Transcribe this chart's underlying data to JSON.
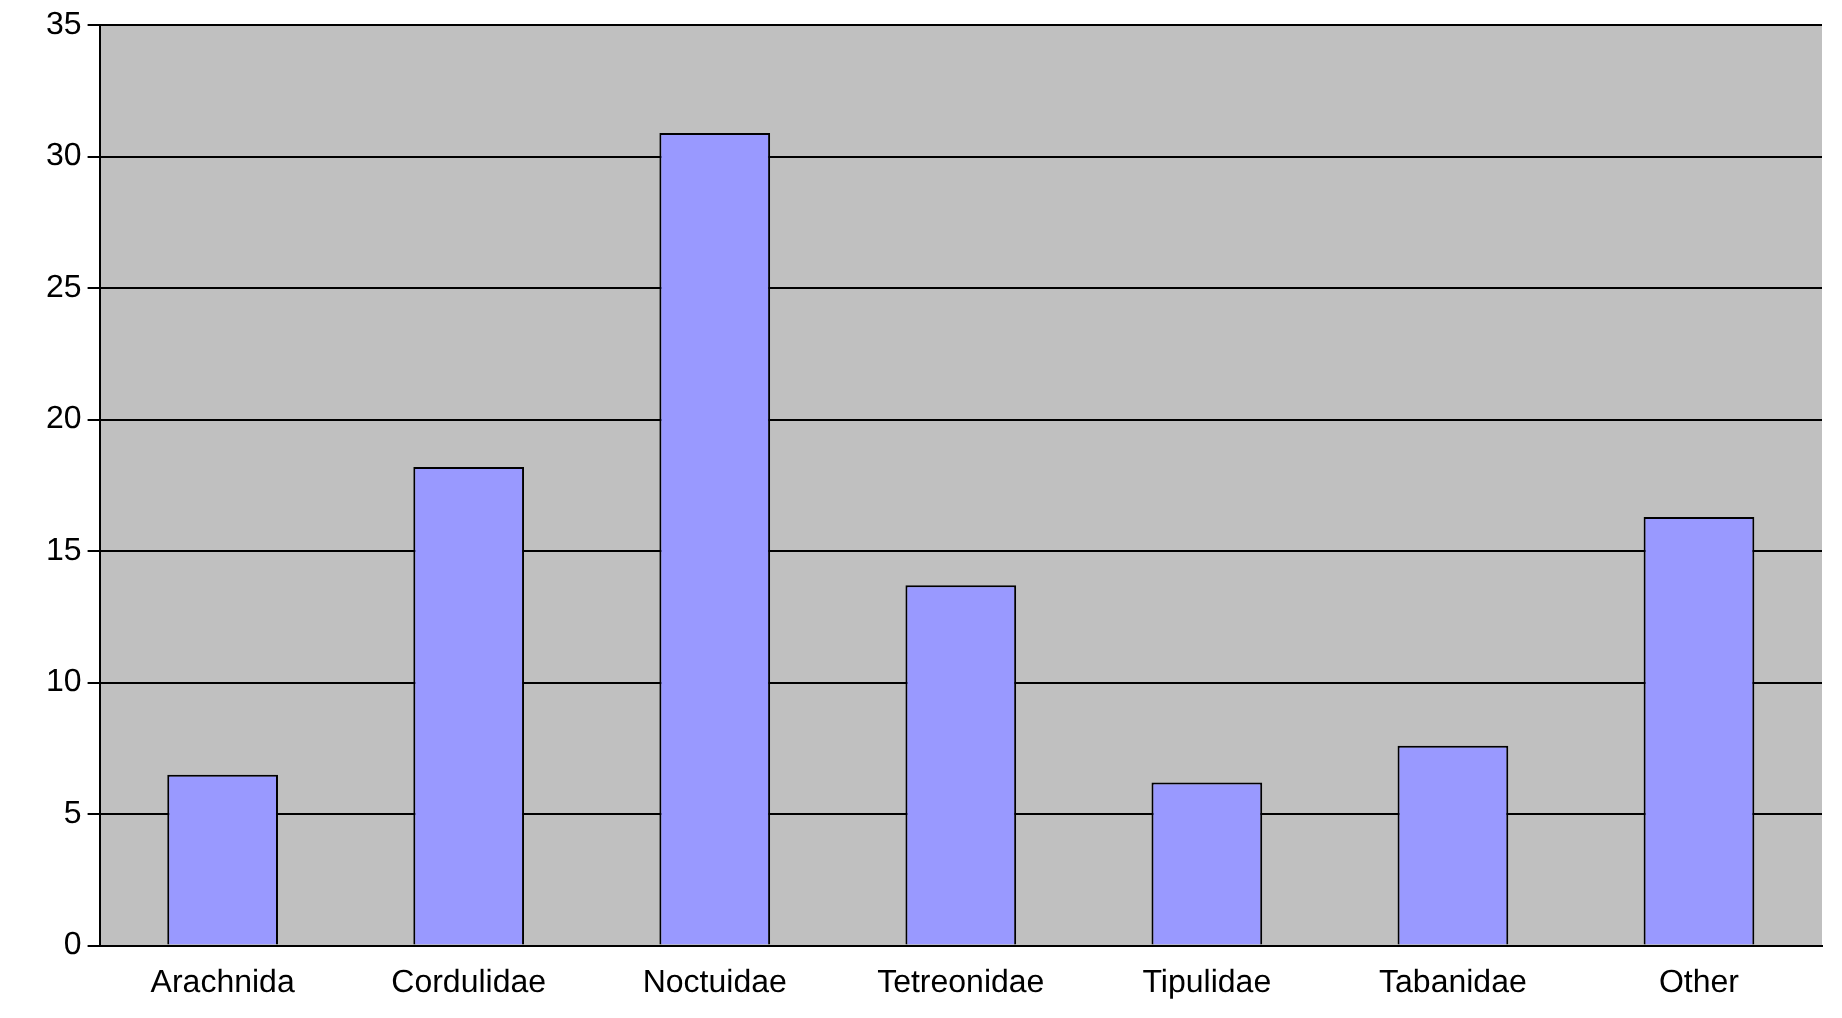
{
  "chart_data": {
    "type": "bar",
    "categories": [
      "Arachnida",
      "Cordulidae",
      "Noctuidae",
      "Tetreonidae",
      "Tipulidae",
      "Tabanidae",
      "Other"
    ],
    "values": [
      6.5,
      18.2,
      30.9,
      13.7,
      6.2,
      7.6,
      16.3
    ],
    "color": "#9999ff",
    "ylim": [
      0,
      35
    ],
    "yticks": [
      0,
      5,
      10,
      15,
      20,
      25,
      30,
      35
    ],
    "grid": "y",
    "legend": false
  }
}
